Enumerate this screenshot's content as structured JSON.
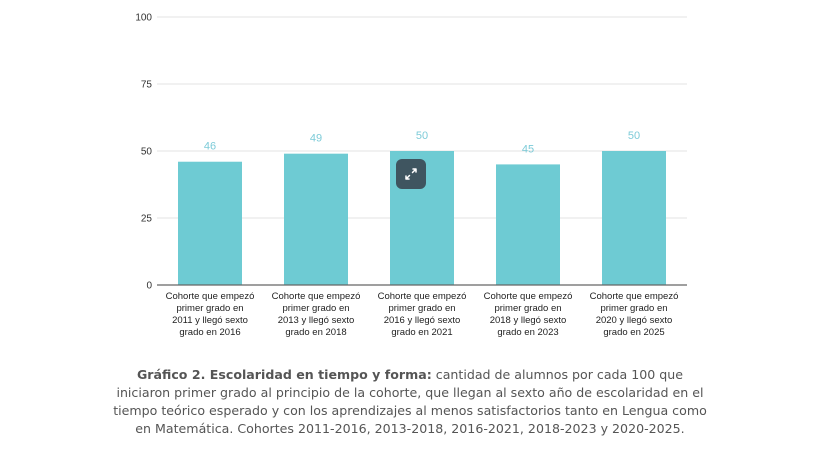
{
  "chart_data": {
    "type": "bar",
    "categories": [
      [
        "Cohorte que empezó",
        "primer grado en",
        "2011 y llegó sexto",
        "grado en 2016"
      ],
      [
        "Cohorte que empezó",
        "primer grado en",
        "2013 y llegó sexto",
        "grado en 2018"
      ],
      [
        "Cohorte que empezó",
        "primer grado en",
        "2016 y llegó sexto",
        "grado en 2021"
      ],
      [
        "Cohorte que empezó",
        "primer grado en",
        "2018 y llegó sexto",
        "grado en 2023"
      ],
      [
        "Cohorte que empezó",
        "primer grado en",
        "2020 y llegó sexto",
        "grado en 2025"
      ]
    ],
    "values": [
      46,
      49,
      50,
      45,
      50
    ],
    "data_labels": [
      "46",
      "49",
      "50",
      "45",
      "50"
    ],
    "y_ticks": [
      "0",
      "25",
      "50",
      "75",
      "100"
    ],
    "ylim": [
      0,
      100
    ],
    "grid": true,
    "legend": "none",
    "bar_color": "#6ecbd3",
    "label_color": "#7ccbd8"
  },
  "expand_button": {
    "icon": "expand-icon"
  },
  "caption": {
    "bold": "Gráfico 2. Escolaridad en tiempo y forma:",
    "text": " cantidad de alumnos por cada 100 que iniciaron primer grado al principio de la cohorte, que llegan al sexto año de escolaridad en el tiempo teórico esperado y con los aprendizajes al menos satisfactorios tanto en Lengua como en Matemática. Cohortes 2011-2016, 2013-2018, 2016-2021, 2018-2023 y 2020-2025."
  }
}
